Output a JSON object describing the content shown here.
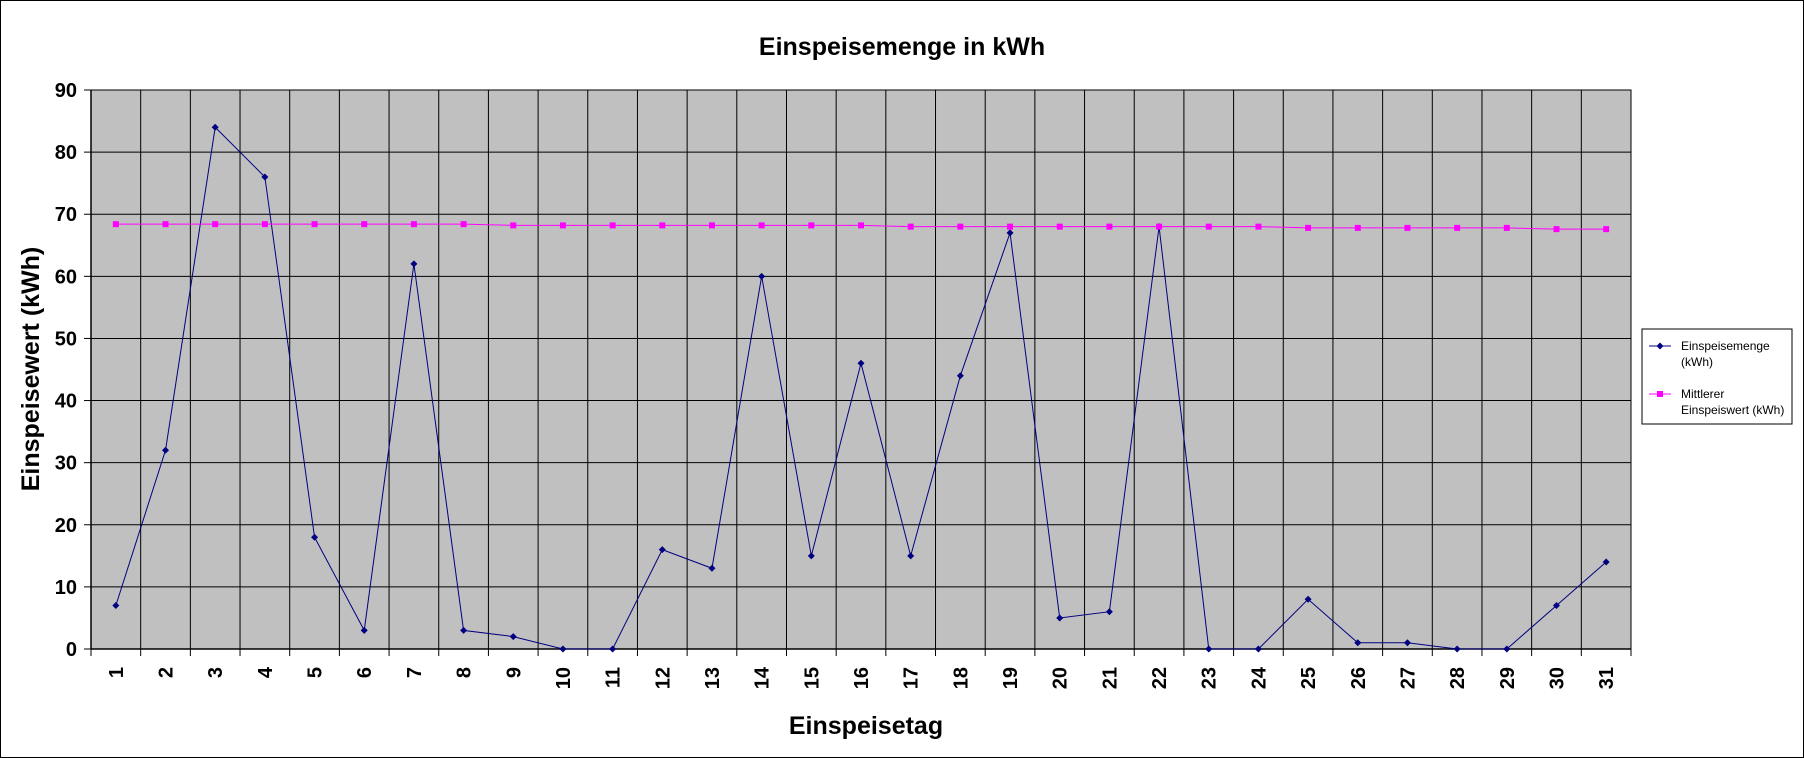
{
  "chart_data": {
    "type": "line",
    "title": "Einspeisemenge in kWh",
    "xlabel": "Einspeisetag",
    "ylabel": "Einspeisewert  (kWh)",
    "x": [
      1,
      2,
      3,
      4,
      5,
      6,
      7,
      8,
      9,
      10,
      11,
      12,
      13,
      14,
      15,
      16,
      17,
      18,
      19,
      20,
      21,
      22,
      23,
      24,
      25,
      26,
      27,
      28,
      29,
      30,
      31
    ],
    "ylim": [
      0,
      90
    ],
    "yticks": [
      0,
      10,
      20,
      30,
      40,
      50,
      60,
      70,
      80,
      90
    ],
    "grid": true,
    "plot_background": "#c0c0c0",
    "legend_position": "right",
    "series": [
      {
        "name": "Einspeisemenge (kWh)",
        "name_lines": [
          "Einspeisemenge",
          "(kWh)"
        ],
        "color": "#000080",
        "marker": "diamond",
        "values": [
          7,
          32,
          84,
          76,
          18,
          3,
          62,
          3,
          2,
          0,
          0,
          16,
          13,
          60,
          15,
          46,
          15,
          44,
          67,
          5,
          6,
          68,
          0,
          0,
          8,
          1,
          1,
          0,
          0,
          7,
          14
        ]
      },
      {
        "name": "Mittlerer Einspeiswert (kWh)",
        "name_lines": [
          "Mittlerer",
          "Einspeiswert (kWh)"
        ],
        "color": "#ff00ff",
        "marker": "square",
        "values": [
          68.4,
          68.4,
          68.4,
          68.4,
          68.4,
          68.4,
          68.4,
          68.4,
          68.2,
          68.2,
          68.2,
          68.2,
          68.2,
          68.2,
          68.2,
          68.2,
          68.0,
          68.0,
          68.0,
          68.0,
          68.0,
          68.0,
          68.0,
          68.0,
          67.8,
          67.8,
          67.8,
          67.8,
          67.8,
          67.6,
          67.6
        ]
      }
    ]
  }
}
